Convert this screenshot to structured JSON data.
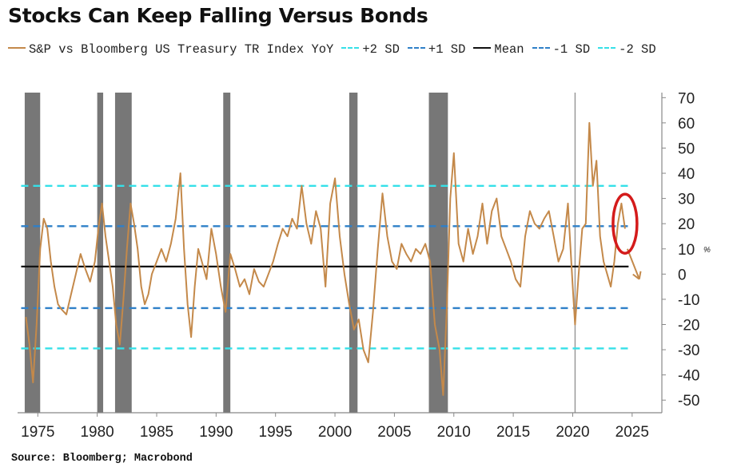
{
  "title": "Stocks Can Keep Falling Versus Bonds",
  "source": "Source: Bloomberg; Macrobond",
  "legend": [
    {
      "label": "S&P vs Bloomberg US Treasury TR Index YoY",
      "color": "#c4894a",
      "style": "solid"
    },
    {
      "label": "+2 SD",
      "color": "#35e0e8",
      "style": "dash"
    },
    {
      "label": "+1 SD",
      "color": "#2f80c8",
      "style": "dash"
    },
    {
      "label": "Mean",
      "color": "#111111",
      "style": "solid"
    },
    {
      "label": "-1 SD",
      "color": "#2f80c8",
      "style": "dash"
    },
    {
      "label": "-2 SD",
      "color": "#35e0e8",
      "style": "dash"
    }
  ],
  "chart_data": {
    "type": "line",
    "title": "Stocks Can Keep Falling Versus Bonds",
    "xlabel": "",
    "ylabel": "%",
    "xlim": [
      1973.3,
      2027.5
    ],
    "ylim": [
      -55,
      72
    ],
    "x_ticks": [
      1975,
      1980,
      1985,
      1990,
      1995,
      2000,
      2005,
      2010,
      2015,
      2020,
      2025
    ],
    "y_ticks": [
      -50,
      -40,
      -30,
      -20,
      -10,
      0,
      10,
      20,
      30,
      40,
      50,
      60,
      70
    ],
    "y_axis_side": "right",
    "grid": false,
    "legend_position": "top",
    "recessions": [
      [
        1973.9,
        1975.2
      ],
      [
        1980.0,
        1980.5
      ],
      [
        1981.5,
        1982.9
      ],
      [
        1990.6,
        1991.2
      ],
      [
        2001.2,
        2001.9
      ],
      [
        2007.9,
        2009.5
      ]
    ],
    "reference_lines": [
      {
        "name": "+2 SD",
        "value": 35
      },
      {
        "name": "+1 SD",
        "value": 19
      },
      {
        "name": "Mean",
        "value": 3
      },
      {
        "name": "-1 SD",
        "value": -13.5
      },
      {
        "name": "-2 SD",
        "value": -29.5
      }
    ],
    "vertical_marker": 2020.2,
    "series": [
      {
        "name": "S&P vs Bloomberg US Treasury TR Index YoY",
        "x": [
          1974.0,
          1974.3,
          1974.6,
          1974.9,
          1975.2,
          1975.5,
          1975.8,
          1976.1,
          1976.4,
          1976.7,
          1977.0,
          1977.4,
          1977.8,
          1978.2,
          1978.6,
          1979.0,
          1979.4,
          1979.8,
          1980.1,
          1980.4,
          1980.7,
          1981.0,
          1981.3,
          1981.6,
          1981.9,
          1982.2,
          1982.5,
          1982.8,
          1983.1,
          1983.4,
          1983.7,
          1984.0,
          1984.3,
          1984.6,
          1985.0,
          1985.4,
          1985.8,
          1986.2,
          1986.6,
          1987.0,
          1987.3,
          1987.6,
          1987.9,
          1988.2,
          1988.5,
          1988.8,
          1989.2,
          1989.6,
          1990.0,
          1990.4,
          1990.8,
          1991.2,
          1991.6,
          1992.0,
          1992.4,
          1992.8,
          1993.2,
          1993.6,
          1994.0,
          1994.4,
          1994.8,
          1995.2,
          1995.6,
          1996.0,
          1996.4,
          1996.8,
          1997.2,
          1997.6,
          1998.0,
          1998.4,
          1998.8,
          1999.2,
          1999.6,
          2000.0,
          2000.4,
          2000.8,
          2001.2,
          2001.6,
          2002.0,
          2002.4,
          2002.8,
          2003.2,
          2003.6,
          2004.0,
          2004.4,
          2004.8,
          2005.2,
          2005.6,
          2006.0,
          2006.4,
          2006.8,
          2007.2,
          2007.6,
          2008.0,
          2008.4,
          2008.8,
          2009.1,
          2009.4,
          2009.7,
          2010.0,
          2010.4,
          2010.8,
          2011.2,
          2011.6,
          2012.0,
          2012.4,
          2012.8,
          2013.2,
          2013.6,
          2014.0,
          2014.4,
          2014.8,
          2015.2,
          2015.6,
          2016.0,
          2016.4,
          2016.8,
          2017.2,
          2017.6,
          2018.0,
          2018.4,
          2018.8,
          2019.2,
          2019.6,
          2020.0,
          2020.2,
          2020.5,
          2020.8,
          2021.1,
          2021.4,
          2021.7,
          2022.0,
          2022.3,
          2022.6,
          2022.9,
          2023.2,
          2023.5,
          2023.8,
          2024.1,
          2024.4
        ],
        "values": [
          -17,
          -28,
          -43,
          -20,
          10,
          22,
          18,
          5,
          -5,
          -12,
          -14,
          -16,
          -8,
          0,
          8,
          2,
          -3,
          5,
          18,
          28,
          15,
          5,
          -5,
          -20,
          -28,
          -10,
          10,
          28,
          20,
          10,
          -5,
          -12,
          -8,
          0,
          5,
          10,
          5,
          12,
          22,
          40,
          10,
          -12,
          -25,
          -5,
          10,
          5,
          -2,
          18,
          8,
          -5,
          -15,
          8,
          2,
          -5,
          -2,
          -8,
          2,
          -3,
          -5,
          0,
          5,
          12,
          18,
          15,
          22,
          18,
          35,
          20,
          12,
          25,
          18,
          -5,
          28,
          38,
          15,
          0,
          -12,
          -22,
          -18,
          -30,
          -35,
          -15,
          10,
          32,
          15,
          5,
          2,
          12,
          8,
          5,
          10,
          8,
          12,
          5,
          -20,
          -30,
          -48,
          -15,
          30,
          48,
          12,
          5,
          18,
          8,
          15,
          28,
          12,
          25,
          30,
          15,
          10,
          5,
          -2,
          -5,
          15,
          25,
          20,
          18,
          22,
          25,
          15,
          5,
          10,
          28,
          -5,
          -20,
          0,
          18,
          20,
          60,
          35,
          45,
          15,
          5,
          0,
          -5,
          5,
          20,
          28,
          18
        ]
      }
    ],
    "highlight_ellipse": {
      "x": 2024.4,
      "y": 20
    },
    "forecast_arrow": {
      "from": [
        2024.6,
        10
      ],
      "to": [
        2025.6,
        -2
      ]
    }
  }
}
